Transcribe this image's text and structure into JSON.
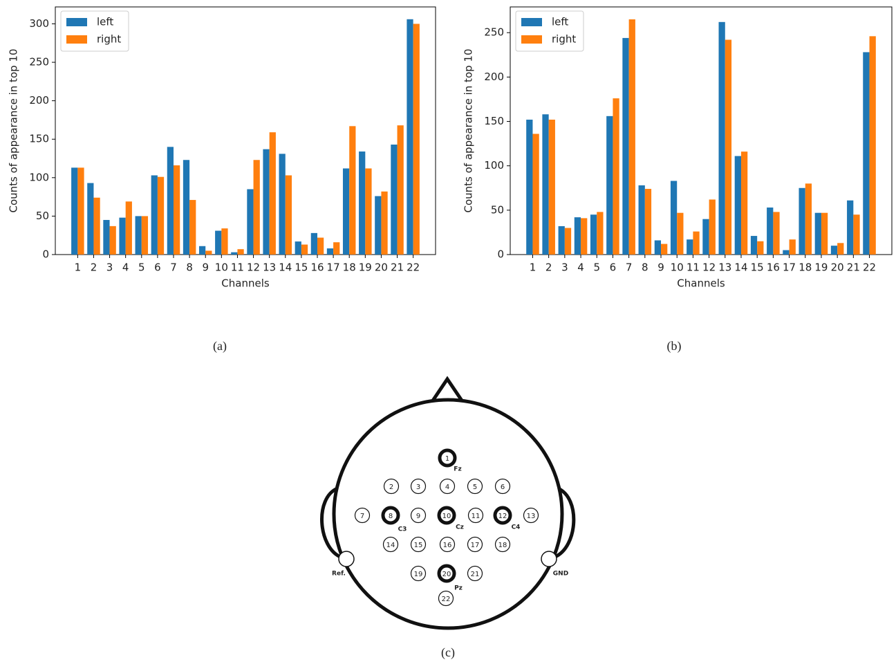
{
  "chart_data": [
    {
      "type": "bar",
      "caption": "(a)",
      "xlabel": "Channels",
      "ylabel": "Counts of appearance in top 10",
      "categories": [
        "1",
        "2",
        "3",
        "4",
        "5",
        "6",
        "7",
        "8",
        "9",
        "10",
        "11",
        "12",
        "13",
        "14",
        "15",
        "16",
        "17",
        "18",
        "19",
        "20",
        "21",
        "22"
      ],
      "series": [
        {
          "name": "left",
          "color": "#1f77b4",
          "values": [
            113,
            93,
            45,
            48,
            50,
            103,
            140,
            123,
            11,
            31,
            3,
            85,
            137,
            131,
            17,
            28,
            8,
            112,
            134,
            76,
            143,
            306
          ]
        },
        {
          "name": "right",
          "color": "#ff7f0e",
          "values": [
            113,
            74,
            37,
            69,
            50,
            101,
            116,
            71,
            5,
            34,
            7,
            123,
            159,
            103,
            13,
            22,
            16,
            167,
            112,
            82,
            168,
            300
          ]
        }
      ],
      "ylim": [
        0,
        322
      ],
      "yticks": [
        0,
        50,
        100,
        150,
        200,
        250,
        300
      ],
      "legend": "upper left"
    },
    {
      "type": "bar",
      "caption": "(b)",
      "xlabel": "Channels",
      "ylabel": "Counts of appearance in top 10",
      "categories": [
        "1",
        "2",
        "3",
        "4",
        "5",
        "6",
        "7",
        "8",
        "9",
        "10",
        "11",
        "12",
        "13",
        "14",
        "15",
        "16",
        "17",
        "18",
        "19",
        "20",
        "21",
        "22"
      ],
      "series": [
        {
          "name": "left",
          "color": "#1f77b4",
          "values": [
            152,
            158,
            32,
            42,
            45,
            156,
            244,
            78,
            16,
            83,
            17,
            40,
            262,
            111,
            21,
            53,
            5,
            75,
            47,
            10,
            61,
            228
          ]
        },
        {
          "name": "right",
          "color": "#ff7f0e",
          "values": [
            136,
            152,
            30,
            41,
            48,
            176,
            265,
            74,
            12,
            47,
            26,
            62,
            242,
            116,
            15,
            48,
            17,
            80,
            47,
            13,
            45,
            246
          ]
        }
      ],
      "ylim": [
        0,
        279
      ],
      "yticks": [
        0,
        50,
        100,
        150,
        200,
        250
      ],
      "legend": "upper left"
    }
  ],
  "diagram": {
    "caption": "(c)",
    "electrodes": [
      "1",
      "2",
      "3",
      "4",
      "5",
      "6",
      "7",
      "8",
      "9",
      "10",
      "11",
      "12",
      "13",
      "14",
      "15",
      "16",
      "17",
      "18",
      "19",
      "20",
      "21",
      "22"
    ],
    "site_names": [
      "Fz",
      "C3",
      "Cz",
      "C4",
      "Pz"
    ],
    "references": [
      "Ref.",
      "GND"
    ]
  }
}
